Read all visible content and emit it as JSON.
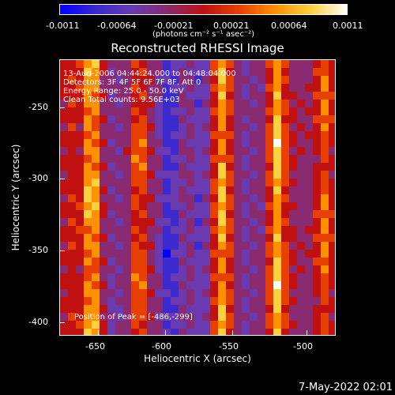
{
  "colorbar": {
    "tick_labels": [
      "-0.0011",
      "-0.00064",
      "-0.00021",
      "0.00021",
      "0.00064",
      "0.0011"
    ],
    "unit_label": "(photons cm⁻² s⁻¹ asec⁻²)"
  },
  "plot": {
    "title": "Reconstructed RHESSI Image",
    "info_lines": [
      "13-Aug-2006 04:44:24.000 to 04:48:04.000",
      "Detectors: 3F 4F 5F 6F 7F 8F, Att 0",
      "Energy Range: 25.0 - 50.0 keV",
      "Clean     Total counts: 9.56E+03"
    ],
    "peak_label": "Position of Peak = [-486,-299]"
  },
  "axes": {
    "x_title": "Heliocentric X (arcsec)",
    "y_title": "Heliocentric Y (arcsec)",
    "x_ticks": [
      "-650",
      "-600",
      "-550",
      "-500"
    ],
    "y_ticks": [
      "-250",
      "-300",
      "-350",
      "-400"
    ]
  },
  "footer": {
    "date": "7-May-2022 02:01"
  },
  "colors": {
    "colormap": [
      "#0000ff",
      "#3a2ad0",
      "#6a3ab0",
      "#8a2a70",
      "#c01010",
      "#e84000",
      "#ff9000",
      "#ffd040",
      "#ffffff"
    ]
  }
}
